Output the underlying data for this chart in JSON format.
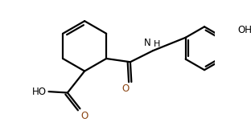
{
  "bg_color": "#ffffff",
  "line_color": "#000000",
  "bond_lw": 1.6,
  "font_size": 8.5,
  "label_color": "#000000",
  "xlim": [
    -0.3,
    3.2
  ],
  "ylim": [
    -0.55,
    1.4
  ],
  "figsize": [
    3.12,
    1.52
  ],
  "dpi": 100
}
